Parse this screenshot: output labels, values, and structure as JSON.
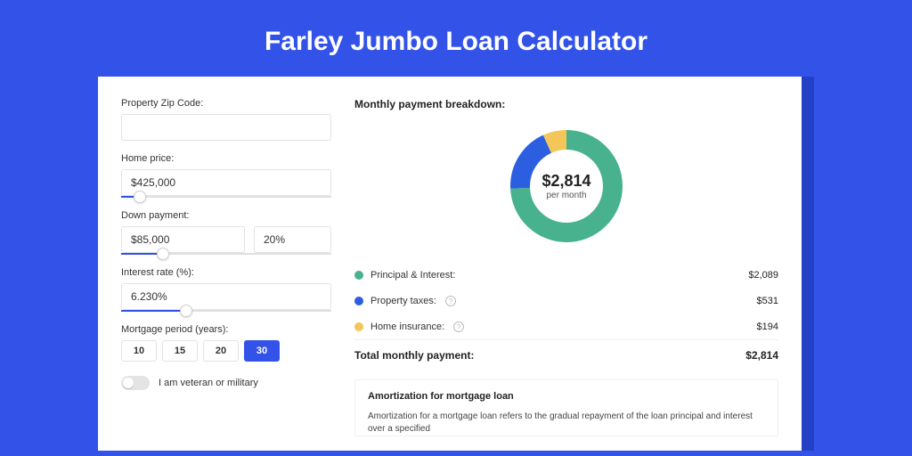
{
  "page_title": "Farley Jumbo Loan Calculator",
  "colors": {
    "page_bg": "#3353e8",
    "accent": "#3353e8",
    "principal": "#47b28d",
    "taxes": "#2c5fe0",
    "insurance": "#f4c658"
  },
  "form": {
    "zip_label": "Property Zip Code:",
    "zip_value": "",
    "home_price_label": "Home price:",
    "home_price_value": "$425,000",
    "home_price_slider_pct": 9,
    "down_label": "Down payment:",
    "down_value": "$85,000",
    "down_pct": "20%",
    "down_slider_pct": 20,
    "rate_label": "Interest rate (%):",
    "rate_value": "6.230%",
    "rate_slider_pct": 31,
    "period_label": "Mortgage period (years):",
    "periods": [
      "10",
      "15",
      "20",
      "30"
    ],
    "period_selected": "30",
    "veteran_label": "I am veteran or military"
  },
  "breakdown": {
    "title": "Monthly payment breakdown:",
    "center_value": "$2,814",
    "center_sub": "per month",
    "donut": {
      "size": 134,
      "radius": 52,
      "stroke": 22,
      "segments": [
        {
          "key": "principal",
          "pct": 74.2,
          "color": "#47b28d"
        },
        {
          "key": "taxes",
          "pct": 18.9,
          "color": "#2c5fe0"
        },
        {
          "key": "insurance",
          "pct": 6.9,
          "color": "#f4c658"
        }
      ]
    },
    "rows": [
      {
        "label": "Principal & Interest:",
        "value": "$2,089",
        "color": "#47b28d",
        "info": false
      },
      {
        "label": "Property taxes:",
        "value": "$531",
        "color": "#2c5fe0",
        "info": true
      },
      {
        "label": "Home insurance:",
        "value": "$194",
        "color": "#f4c658",
        "info": true
      }
    ],
    "total_label": "Total monthly payment:",
    "total_value": "$2,814"
  },
  "amort": {
    "title": "Amortization for mortgage loan",
    "text": "Amortization for a mortgage loan refers to the gradual repayment of the loan principal and interest over a specified"
  }
}
